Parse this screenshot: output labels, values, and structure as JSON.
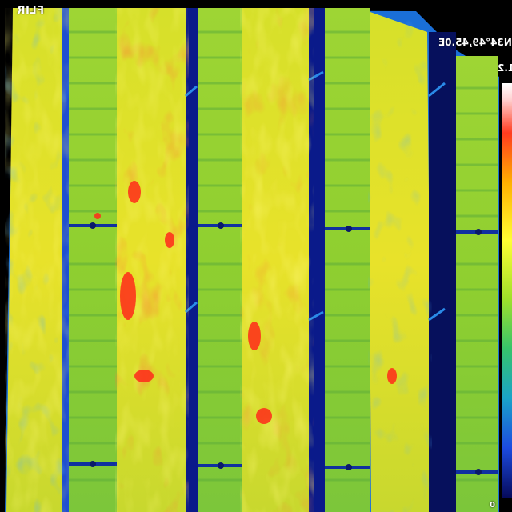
{
  "image": {
    "description_colors": {
      "hot": "#ff2a1a",
      "warm": "#ffd21a",
      "mid": "#9ad82a",
      "cool": "#1f7fe0",
      "cold": "#0a1a8a"
    }
  },
  "overlay": {
    "brand": "FLIR",
    "coordinates": "N34°49,45.0E",
    "scale_top": "1.2",
    "scale_bottom": "0"
  }
}
